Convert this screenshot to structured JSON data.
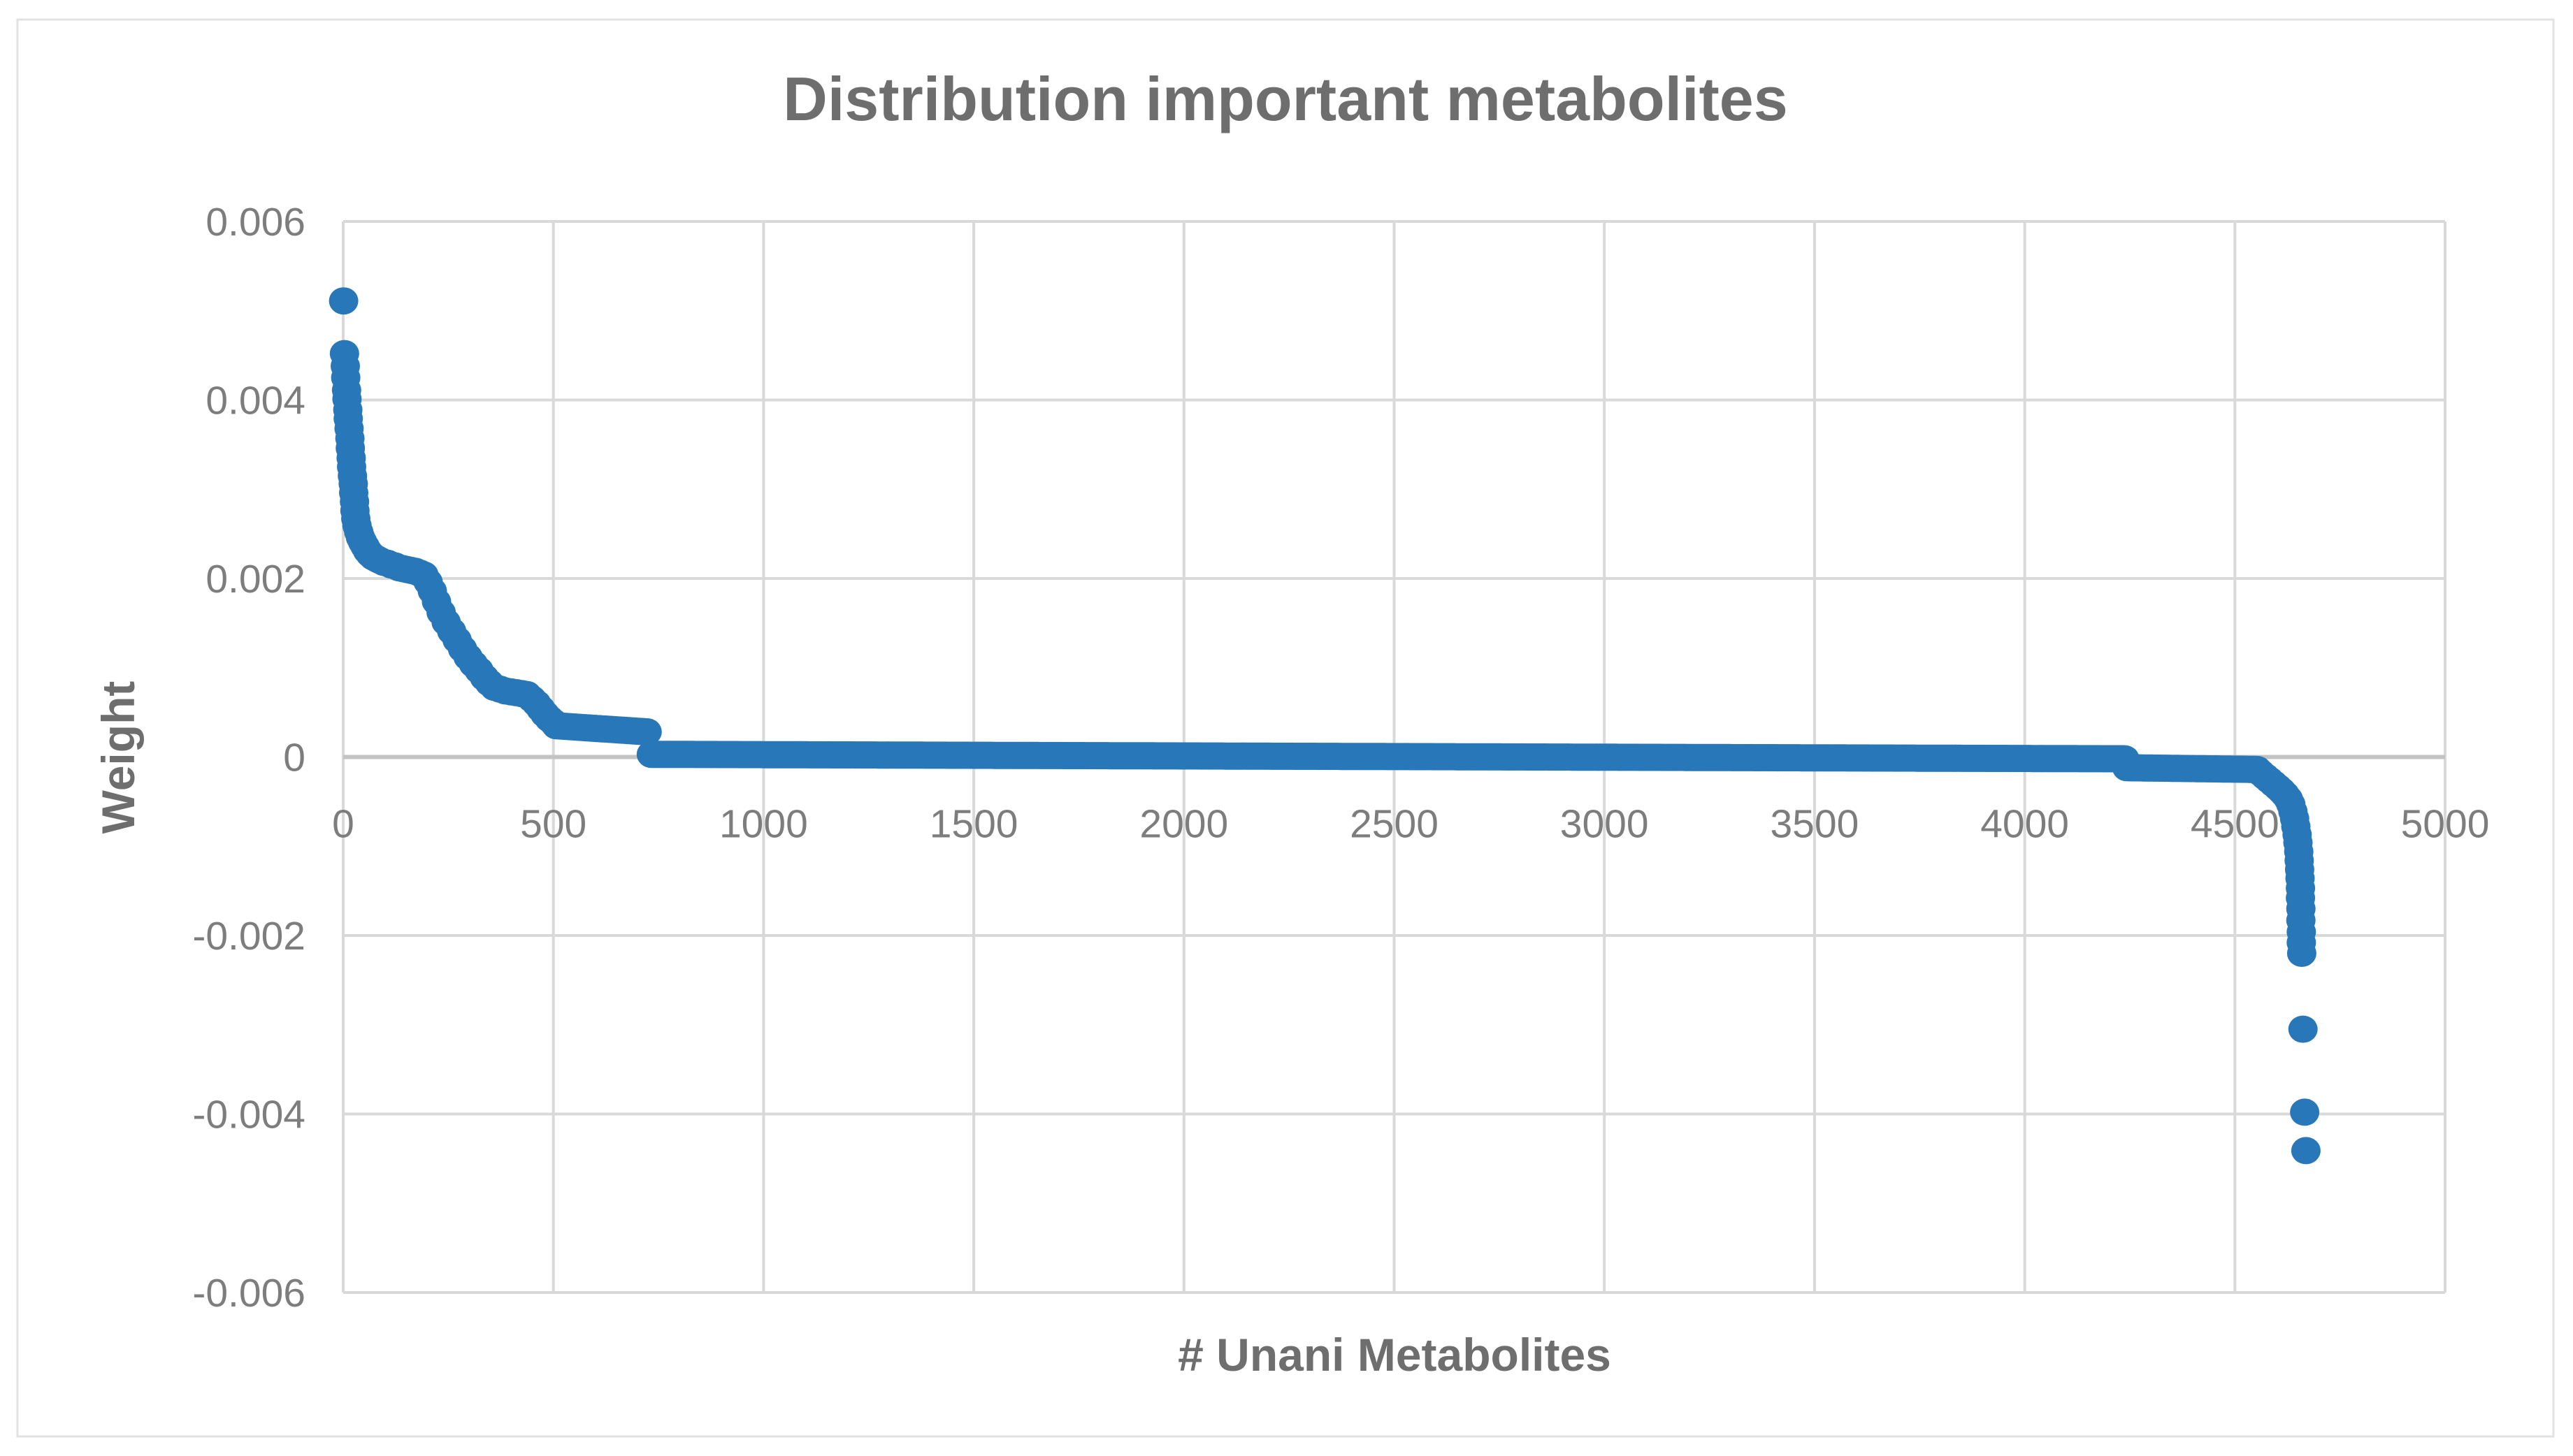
{
  "page": {
    "background": "#ffffff",
    "chart_border_color": "#e2e2e2"
  },
  "chart_data": {
    "type": "scatter",
    "title": "Distribution important metabolites",
    "xlabel": "# Unani Metabolites",
    "ylabel": "Weight",
    "xlim": [
      0,
      5000
    ],
    "ylim": [
      -0.006,
      0.006
    ],
    "grid": true,
    "legend": false,
    "xticks": {
      "values": [
        0,
        500,
        1000,
        1500,
        2000,
        2500,
        3000,
        3500,
        4000,
        4500,
        5000
      ],
      "labels": [
        "0",
        "500",
        "1000",
        "1500",
        "2000",
        "2500",
        "3000",
        "3500",
        "4000",
        "4500",
        "5000"
      ]
    },
    "yticks": {
      "values": [
        0.006,
        0.004,
        0.002,
        0,
        -0.002,
        -0.004,
        -0.006
      ],
      "labels": [
        "0.006",
        "0.004",
        "0.002",
        "0",
        "-0.002",
        "-0.004",
        "-0.006"
      ]
    },
    "colors": {
      "marker": "#2878b9",
      "gridline": "#d9d9d9",
      "axis_line": "#c3c3c3",
      "tick_label": "#7d7d7d",
      "title": "#6e6e6e"
    },
    "marker": {
      "rx": 21,
      "ry": 19.5
    },
    "series": [
      {
        "name": "Weight",
        "points": [
          [
            1,
            0.00511
          ],
          [
            3,
            0.00452
          ],
          [
            5,
            0.00438
          ],
          [
            6,
            0.00425
          ],
          [
            8,
            0.00411
          ],
          [
            9,
            0.00401
          ],
          [
            11,
            0.00389
          ],
          [
            12,
            0.00379
          ],
          [
            14,
            0.00368
          ],
          [
            16,
            0.00357
          ],
          [
            17,
            0.00346
          ],
          [
            19,
            0.00335
          ],
          [
            20,
            0.00325
          ],
          [
            22,
            0.00315
          ],
          [
            24,
            0.00306
          ],
          [
            25,
            0.00296
          ],
          [
            27,
            0.00286
          ],
          [
            28,
            0.00276
          ],
          [
            30,
            0.00267
          ],
          [
            33,
            0.00259
          ],
          [
            37,
            0.00252
          ],
          [
            41,
            0.00246
          ],
          [
            46,
            0.00241
          ],
          [
            52,
            0.00236
          ],
          [
            58,
            0.00231
          ],
          [
            65,
            0.00227
          ],
          [
            72,
            0.00224
          ],
          [
            80,
            0.00222
          ],
          [
            88,
            0.0022
          ],
          [
            97,
            0.00218
          ],
          [
            106,
            0.00217
          ],
          [
            115,
            0.00215
          ],
          [
            124,
            0.00214
          ],
          [
            133,
            0.00212
          ],
          [
            142,
            0.00211
          ],
          [
            152,
            0.0021
          ],
          [
            162,
            0.00209
          ],
          [
            172,
            0.00208
          ],
          [
            182,
            0.00206
          ],
          [
            192,
            0.00204
          ],
          [
            202,
            0.00196
          ],
          [
            212,
            0.00186
          ],
          [
            222,
            0.00174
          ],
          [
            233,
            0.00162
          ],
          [
            245,
            0.00151
          ],
          [
            258,
            0.00141
          ],
          [
            271,
            0.00131
          ],
          [
            284,
            0.00121
          ],
          [
            297,
            0.00112
          ],
          [
            310,
            0.00104
          ],
          [
            323,
            0.00097
          ],
          [
            336,
            0.00089
          ],
          [
            348,
            0.00083
          ],
          [
            360,
            0.00078
          ],
          [
            373,
            0.00076
          ],
          [
            386,
            0.00074
          ],
          [
            399,
            0.00073
          ],
          [
            412,
            0.00072
          ],
          [
            425,
            0.00071
          ],
          [
            437,
            0.0007
          ],
          [
            449,
            0.00065
          ],
          [
            460,
            0.0006
          ],
          [
            470,
            0.00054
          ],
          [
            480,
            0.00048
          ],
          [
            490,
            0.00043
          ],
          [
            500,
            0.00039
          ],
          [
            4562,
            -0.00018
          ],
          [
            4572,
            -0.00022
          ],
          [
            4582,
            -0.00026
          ],
          [
            4592,
            -0.0003
          ],
          [
            4602,
            -0.00034
          ],
          [
            4611,
            -0.00038
          ],
          [
            4619,
            -0.00042
          ],
          [
            4627,
            -0.00047
          ],
          [
            4633,
            -0.00053
          ],
          [
            4638,
            -0.00061
          ],
          [
            4642,
            -0.00069
          ],
          [
            4645,
            -0.00078
          ],
          [
            4648,
            -0.00087
          ],
          [
            4650,
            -0.00096
          ],
          [
            4652,
            -0.00106
          ],
          [
            4653,
            -0.00116
          ],
          [
            4654,
            -0.00126
          ],
          [
            4655,
            -0.00136
          ],
          [
            4656,
            -0.00147
          ],
          [
            4656,
            -0.00158
          ],
          [
            4657,
            -0.0017
          ],
          [
            4657,
            -0.00183
          ],
          [
            4658,
            -0.00196
          ],
          [
            4658,
            -0.00208
          ],
          [
            4659,
            -0.0022
          ],
          [
            4662,
            -0.00305
          ],
          [
            4666,
            -0.00398
          ],
          [
            4669,
            -0.00441
          ]
        ],
        "dense_runs": [
          {
            "x0": 507,
            "x1": 728,
            "y0": 0.00035,
            "y1": 0.00028,
            "step": 6
          },
          {
            "x0": 733,
            "x1": 4238,
            "y0": 3e-05,
            "y1": -2e-05,
            "step": 5
          },
          {
            "x0": 4243,
            "x1": 4557,
            "y0": -0.00012,
            "y1": -0.00014,
            "step": 5
          }
        ]
      }
    ]
  }
}
